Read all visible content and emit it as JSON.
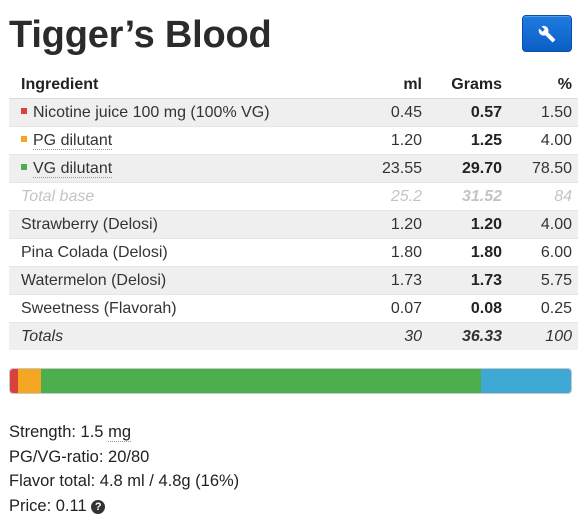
{
  "recipe_title": "Tigger’s Blood",
  "toolbar": {
    "tool_icon": "wrench-icon"
  },
  "table": {
    "headers": {
      "ingredient": "Ingredient",
      "ml": "ml",
      "grams": "Grams",
      "percent": "%"
    },
    "base_rows": [
      {
        "name": "Nicotine juice 100 mg (100% VG)",
        "ml": "0.45",
        "grams": "0.57",
        "percent": "1.50",
        "color": "#d9423a"
      },
      {
        "name": "PG dilutant",
        "ml": "1.20",
        "grams": "1.25",
        "percent": "4.00",
        "color": "#f5a623"
      },
      {
        "name": "VG dilutant",
        "ml": "23.55",
        "grams": "29.70",
        "percent": "78.50",
        "color": "#4cae4c"
      }
    ],
    "total_base": {
      "label": "Total base",
      "ml": "25.2",
      "grams": "31.52",
      "percent": "84"
    },
    "flavor_rows": [
      {
        "name": "Strawberry (Delosi)",
        "ml": "1.20",
        "grams": "1.20",
        "percent": "4.00"
      },
      {
        "name": "Pina Colada (Delosi)",
        "ml": "1.80",
        "grams": "1.80",
        "percent": "6.00"
      },
      {
        "name": "Watermelon (Delosi)",
        "ml": "1.73",
        "grams": "1.73",
        "percent": "5.75"
      },
      {
        "name": "Sweetness (Flavorah)",
        "ml": "0.07",
        "grams": "0.08",
        "percent": "0.25"
      }
    ],
    "totals": {
      "label": "Totals",
      "ml": "30",
      "grams": "36.33",
      "percent": "100"
    }
  },
  "composition_bar": {
    "segments": [
      {
        "label": "Nicotine",
        "percent": 1.5,
        "color": "#d9423a"
      },
      {
        "label": "PG",
        "percent": 4.0,
        "color": "#f5a623"
      },
      {
        "label": "VG",
        "percent": 78.5,
        "color": "#4cae4c"
      },
      {
        "label": "Flavor",
        "percent": 16.0,
        "color": "#3fa9d6"
      }
    ]
  },
  "stats": {
    "strength_label": "Strength: 1.5 ",
    "strength_unit": "mg",
    "pgvg": "PG/VG-ratio: 20/80",
    "flavor_total": "Flavor total: 4.8 ml / 4.8g (16%)",
    "price_partial": "Price: 0.11"
  }
}
